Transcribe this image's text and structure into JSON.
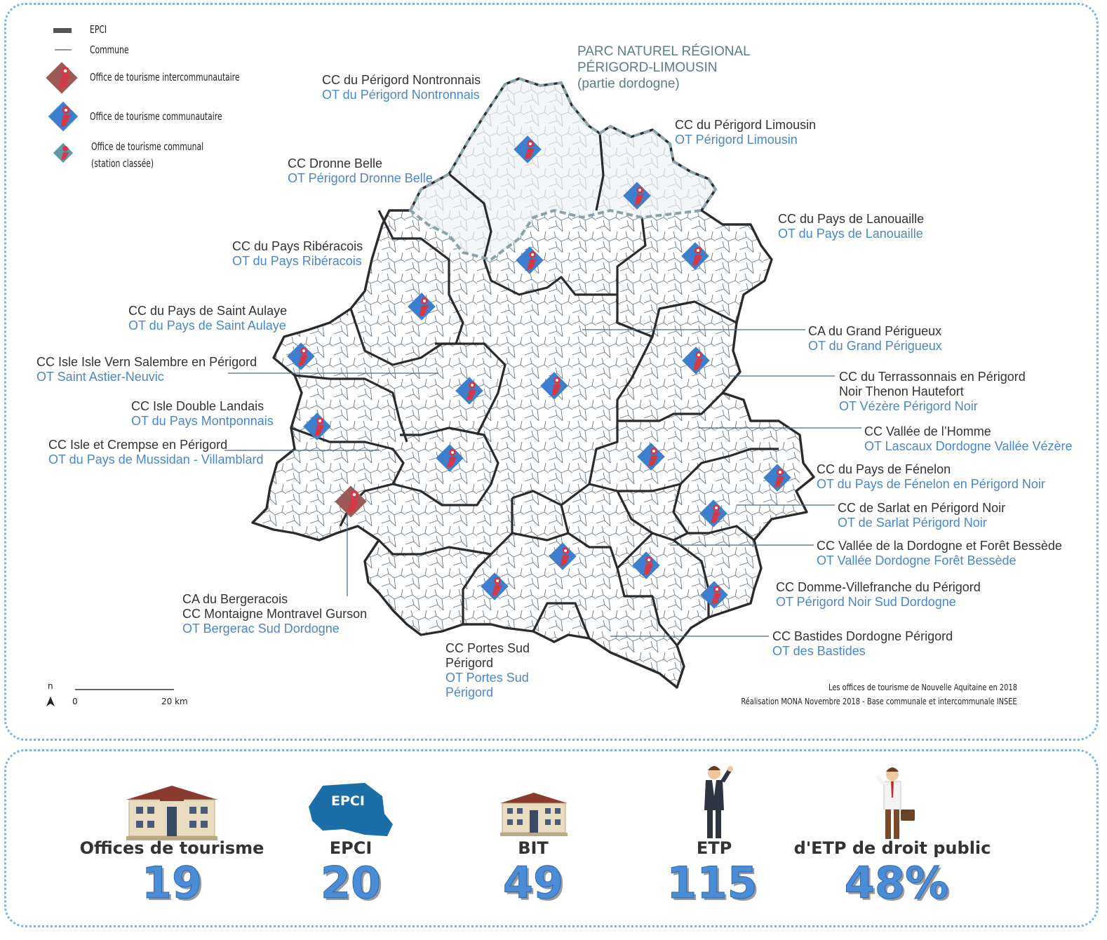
{
  "legend": {
    "epci": "EPCI",
    "commune": "Commune",
    "ot_intercommunautaire": "Office de tourisme intercommunautaire",
    "ot_communautaire": "Office de tourisme communautaire",
    "ot_communal_line1": "Office de tourisme communal",
    "ot_communal_line2": "(station classée)"
  },
  "pnr": {
    "line1": "PARC NATUREL RÉGIONAL",
    "line2": "PÉRIGORD-LIMOUSIN",
    "line3": "(partie dordogne)"
  },
  "labels": {
    "nontronnais": {
      "cc": "CC du Périgord Nontronnais",
      "ot": "OT du Périgord Nontronnais"
    },
    "limousin": {
      "cc": "CC du Périgord Limousin",
      "ot": "OT Périgord Limousin"
    },
    "dronne": {
      "cc": "CC Dronne Belle",
      "ot": "OT Périgord Dronne Belle"
    },
    "lanouaille": {
      "cc": "CC du Pays de Lanouaille",
      "ot": "OT du Pays de Lanouaille"
    },
    "riberacois": {
      "cc": "CC du Pays Ribéracois",
      "ot": "OT du Pays Ribéracois"
    },
    "saint_aulaye": {
      "cc": "CC du Pays de Saint Aulaye",
      "ot": "OT du Pays de Saint Aulaye"
    },
    "grand_perigueux": {
      "cc": "CA du Grand Périgueux",
      "ot": "OT du Grand Périgueux"
    },
    "isle_vern": {
      "cc": "CC Isle Isle Vern Salembre en Périgord",
      "ot": "OT Saint Astier-Neuvic"
    },
    "terrassonnais": {
      "cc1": "CC du Terrassonnais en Périgord",
      "cc2": "Noir Thenon Hautefort",
      "ot": "OT Vézère Périgord Noir"
    },
    "double_landais": {
      "cc": "CC Isle Double Landais",
      "ot": "OT du Pays Montponnais"
    },
    "vallee_homme": {
      "cc": "CC Vallée de l’Homme",
      "ot": "OT Lascaux Dordogne Vallée Vézère"
    },
    "crempse": {
      "cc": "CC Isle et Crempse en Périgord",
      "ot": "OT du Pays de Mussidan - Villamblard"
    },
    "fenelon": {
      "cc": "CC du Pays de Fénelon",
      "ot": "OT du Pays de Fénelon en Périgord Noir"
    },
    "sarlat": {
      "cc": "CC de Sarlat en Périgord Noir",
      "ot": "OT de Sarlat Périgord Noir"
    },
    "bessede": {
      "cc": "CC Vallée de la Dordogne et Forêt Bessède",
      "ot": "OT Vallée Dordogne Forêt Bessède"
    },
    "bergeracois": {
      "cc1": "CA du Bergeracois",
      "cc2": "CC Montaigne Montravel Gurson",
      "ot": "OT Bergerac Sud Dordogne"
    },
    "domme": {
      "cc": "CC Domme-Villefranche du Périgord",
      "ot": "OT Périgord Noir Sud Dordogne"
    },
    "portes_sud": {
      "cc1": "CC Portes Sud",
      "cc2": "Périgord",
      "ot1": "OT Portes Sud",
      "ot2": "Périgord"
    },
    "bastides": {
      "cc": "CC Bastides Dordogne Périgord",
      "ot": "OT des Bastides"
    }
  },
  "scale": {
    "north": "n",
    "zero": "0",
    "km": "20 km"
  },
  "credits": {
    "line1": "Les offices de tourisme de Nouvelle Aquitaine en 2018",
    "line2": "Réalisation MONA Novembre 2018 - Base communale et intercommunale INSEE"
  },
  "stats": [
    {
      "label": "Offices de tourisme",
      "value": "19",
      "icon": "tourism-office-building-icon"
    },
    {
      "label": "EPCI",
      "value": "20",
      "icon": "epci-map-shape-icon",
      "icon_text": "EPCI"
    },
    {
      "label": "BIT",
      "value": "49",
      "icon": "bit-building-icon"
    },
    {
      "label": "ETP",
      "value": "115",
      "icon": "employee-icon"
    },
    {
      "label": "d'ETP de droit public",
      "value": "48%",
      "icon": "employee-briefcase-icon"
    }
  ],
  "colors": {
    "epci_border": "#2b2b2b",
    "commune_border": "#6a7c8a",
    "ot_blue": "#3d7fce",
    "ot_red": "#d33a48",
    "ot_intercom": "#9b5a58",
    "label_blue": "#4a87c8",
    "stat_blue": "#4a8cd6",
    "pnr_gray": "#5a7d86"
  }
}
